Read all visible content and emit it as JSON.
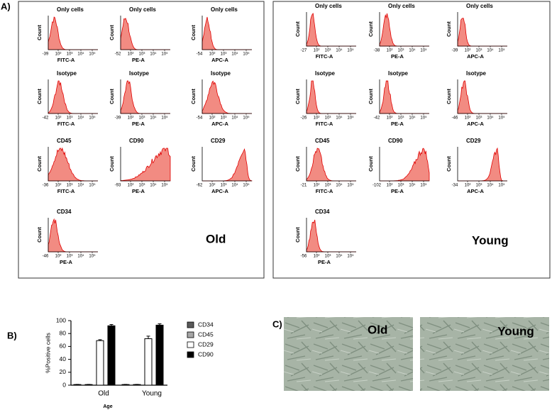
{
  "panel_labels": [
    "A)",
    "B)",
    "C)"
  ],
  "panel_a": {
    "xticks": [
      "10²",
      "10³",
      "10⁴",
      "10⁵"
    ],
    "ylabel": "Count",
    "groups": [
      {
        "label": "Old",
        "plots": [
          {
            "title": "Only cells",
            "xlabel": "FITC-A",
            "xmin": "-39"
          },
          {
            "title": "Only cells",
            "xlabel": "PE-A",
            "xmin": "-52"
          },
          {
            "title": "Only cells",
            "xlabel": "APC-A",
            "xmin": "-54"
          },
          {
            "title": "Isotype",
            "xlabel": "FITC-A",
            "xmin": "-42"
          },
          {
            "title": "Isotype",
            "xlabel": "PE-A",
            "xmin": "-39"
          },
          {
            "title": "Isotype",
            "xlabel": "APC-A",
            "xmin": "-54"
          },
          {
            "title": "CD45",
            "xlabel": "FITC-A",
            "xmin": "-36"
          },
          {
            "title": "CD90",
            "xlabel": "PE-A",
            "xmin": "-93"
          },
          {
            "title": "CD29",
            "xlabel": "APC-A",
            "xmin": "-62"
          },
          {
            "title": "CD34",
            "xlabel": "PE-A",
            "xmin": "-46"
          }
        ]
      },
      {
        "label": "Young",
        "plots": [
          {
            "title": "Only cells",
            "xlabel": "FITC-A",
            "xmin": "-27"
          },
          {
            "title": "Only cells",
            "xlabel": "PE-A",
            "xmin": "-38"
          },
          {
            "title": "Only cells",
            "xlabel": "APC-A",
            "xmin": "-39"
          },
          {
            "title": "Isotype",
            "xlabel": "FITC-A",
            "xmin": "-26"
          },
          {
            "title": "Isotype",
            "xlabel": "PE-A",
            "xmin": "-42"
          },
          {
            "title": "Isotype",
            "xlabel": "APC-A",
            "xmin": "-46"
          },
          {
            "title": "CD45",
            "xlabel": "FITC-A",
            "xmin": "-21"
          },
          {
            "title": "CD90",
            "xlabel": "PE-A",
            "xmin": "-102"
          },
          {
            "title": "CD29",
            "xlabel": "APC-A",
            "xmin": "-34"
          },
          {
            "title": "CD34",
            "xlabel": "PE-A",
            "xmin": "-56"
          }
        ]
      }
    ]
  },
  "chart_data": {
    "type": "bar",
    "ylabel": "%Positive cells",
    "xlabel": "Age",
    "categories": [
      "Old",
      "Young"
    ],
    "ylim": [
      0,
      100
    ],
    "yticks": [
      0,
      20,
      40,
      60,
      80,
      100
    ],
    "series": [
      {
        "name": "CD34",
        "color": "#5a5a5a",
        "values": [
          1,
          1
        ],
        "errors": [
          0.3,
          0.3
        ]
      },
      {
        "name": "CD45",
        "color": "#a6a6a6",
        "values": [
          1,
          1
        ],
        "errors": [
          0.3,
          0.3
        ]
      },
      {
        "name": "CD29",
        "color": "#ffffff",
        "values": [
          69,
          72
        ],
        "errors": [
          1.5,
          4
        ]
      },
      {
        "name": "CD90",
        "color": "#000000",
        "values": [
          92,
          93
        ],
        "errors": [
          2,
          2
        ]
      }
    ]
  },
  "panel_c": {
    "images": [
      {
        "label": "Old"
      },
      {
        "label": "Young"
      }
    ]
  }
}
